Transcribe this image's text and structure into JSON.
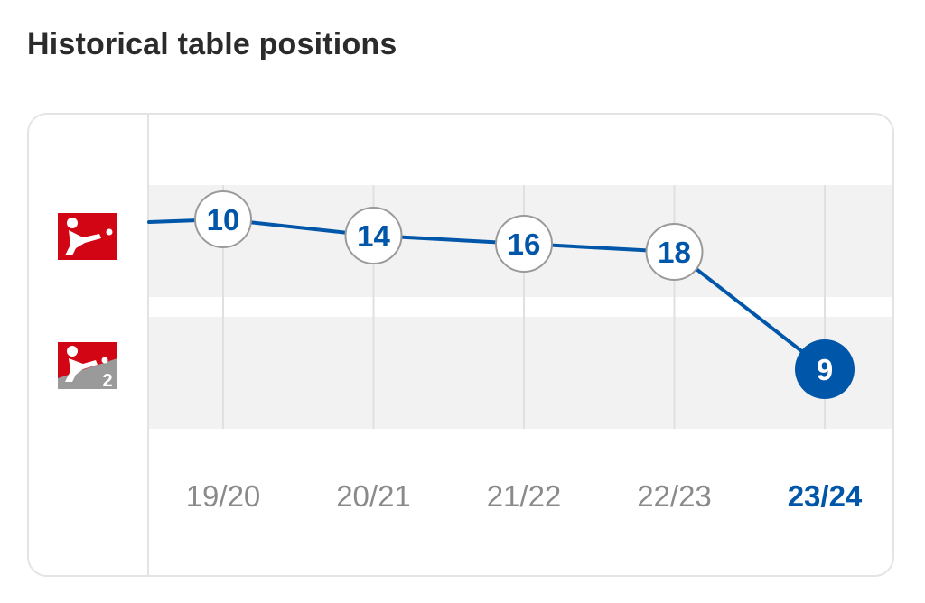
{
  "header": {
    "title": "Historical table positions"
  },
  "leagues": [
    {
      "id": "bundesliga",
      "icon": "bundesliga-logo-icon",
      "color": "#d20515"
    },
    {
      "id": "2-bundesliga",
      "icon": "2-bundesliga-logo-icon",
      "color": "#d20515",
      "badge": "2"
    }
  ],
  "chart_data": {
    "type": "line",
    "categories": [
      "19/20",
      "20/21",
      "21/22",
      "22/23",
      "23/24"
    ],
    "series": [
      {
        "values": [
          10,
          14,
          16,
          18,
          9
        ],
        "league": [
          "bundesliga",
          "bundesliga",
          "bundesliga",
          "bundesliga",
          "2-bundesliga"
        ]
      }
    ],
    "highlight_category": "23/24",
    "xlabel": "",
    "ylabel": "",
    "grid": true,
    "colors": {
      "line": "#0056a8",
      "highlight": "#0056a8",
      "marker_border": "#9a9a9a",
      "band": "#f2f2f2",
      "tick_label": "#8a8a8a"
    }
  }
}
